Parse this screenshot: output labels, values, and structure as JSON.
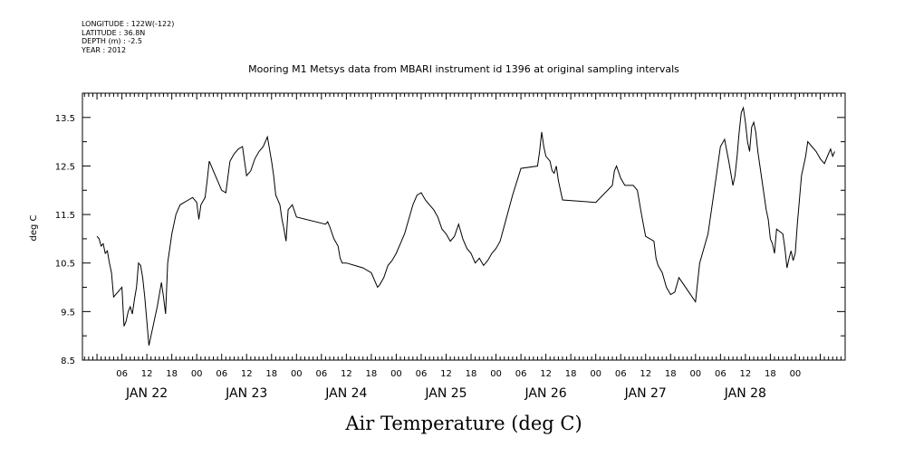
{
  "header": {
    "longitude": "LONGITUDE : 122W(-122)",
    "latitude": "LATITUDE : 36.8N",
    "depth": "DEPTH (m) : -2.5",
    "year": "YEAR : 2012"
  },
  "chart_data": {
    "type": "line",
    "title": "Mooring M1 Metsys data from MBARI instrument id 1396 at original sampling intervals",
    "xlabel": "Air Temperature (deg C)",
    "ylabel": "deg C",
    "ylim": [
      8.5,
      14.0
    ],
    "yticks": [
      "8.5",
      "9.5",
      "10.5",
      "11.5",
      "12.5",
      "13.5"
    ],
    "xlim_hours": [
      0,
      168
    ],
    "hour_tick_labels": [
      "06",
      "12",
      "18",
      "00"
    ],
    "day_labels": [
      "JAN 22",
      "JAN 23",
      "JAN 24",
      "JAN 25",
      "JAN 26",
      "JAN 27",
      "JAN 28"
    ],
    "grid": false,
    "series": [
      {
        "points": [
          [
            0.0,
            11.05
          ],
          [
            0.5,
            11.0
          ],
          [
            1.0,
            10.85
          ],
          [
            1.5,
            10.9
          ],
          [
            2.0,
            10.7
          ],
          [
            2.5,
            10.75
          ],
          [
            3.0,
            10.5
          ],
          [
            3.5,
            10.3
          ],
          [
            4.0,
            9.8
          ],
          [
            4.5,
            9.85
          ],
          [
            5.0,
            9.9
          ],
          [
            5.5,
            9.95
          ],
          [
            6.0,
            10.0
          ],
          [
            6.5,
            9.2
          ],
          [
            7.0,
            9.3
          ],
          [
            7.5,
            9.5
          ],
          [
            8.0,
            9.6
          ],
          [
            8.5,
            9.45
          ],
          [
            9.0,
            9.75
          ],
          [
            9.5,
            10.0
          ],
          [
            10.0,
            10.5
          ],
          [
            10.5,
            10.45
          ],
          [
            11.0,
            10.2
          ],
          [
            11.5,
            9.8
          ],
          [
            12.0,
            9.3
          ],
          [
            12.5,
            8.8
          ],
          [
            13.0,
            9.0
          ],
          [
            13.5,
            9.2
          ],
          [
            14.0,
            9.4
          ],
          [
            14.5,
            9.6
          ],
          [
            15.0,
            9.85
          ],
          [
            15.5,
            10.1
          ],
          [
            16.0,
            9.8
          ],
          [
            16.5,
            9.45
          ],
          [
            17.0,
            10.5
          ],
          [
            18.0,
            11.1
          ],
          [
            19.0,
            11.5
          ],
          [
            20.0,
            11.7
          ],
          [
            21.0,
            11.75
          ],
          [
            22.0,
            11.8
          ],
          [
            23.0,
            11.85
          ],
          [
            24.0,
            11.75
          ],
          [
            24.5,
            11.4
          ],
          [
            25.0,
            11.7
          ],
          [
            26.0,
            11.85
          ],
          [
            26.5,
            12.2
          ],
          [
            27.0,
            12.6
          ],
          [
            28.0,
            12.4
          ],
          [
            30.0,
            12.0
          ],
          [
            31.0,
            11.95
          ],
          [
            32.0,
            12.6
          ],
          [
            33.0,
            12.75
          ],
          [
            34.0,
            12.85
          ],
          [
            35.0,
            12.9
          ],
          [
            36.0,
            12.3
          ],
          [
            37.0,
            12.4
          ],
          [
            38.0,
            12.65
          ],
          [
            39.0,
            12.8
          ],
          [
            40.0,
            12.9
          ],
          [
            41.0,
            13.1
          ],
          [
            41.5,
            12.85
          ],
          [
            42.0,
            12.6
          ],
          [
            42.5,
            12.3
          ],
          [
            43.0,
            11.9
          ],
          [
            44.0,
            11.7
          ],
          [
            44.5,
            11.4
          ],
          [
            45.0,
            11.2
          ],
          [
            45.5,
            10.95
          ],
          [
            46.0,
            11.6
          ],
          [
            47.0,
            11.7
          ],
          [
            48.0,
            11.45
          ],
          [
            55.0,
            11.3
          ],
          [
            55.5,
            11.35
          ],
          [
            56.0,
            11.25
          ],
          [
            57.0,
            11.0
          ],
          [
            58.0,
            10.85
          ],
          [
            58.5,
            10.6
          ],
          [
            59.0,
            10.5
          ],
          [
            60.0,
            10.5
          ],
          [
            62.0,
            10.45
          ],
          [
            64.0,
            10.4
          ],
          [
            66.0,
            10.3
          ],
          [
            67.0,
            10.1
          ],
          [
            67.5,
            10.0
          ],
          [
            68.0,
            10.05
          ],
          [
            69.0,
            10.2
          ],
          [
            70.0,
            10.45
          ],
          [
            71.0,
            10.55
          ],
          [
            72.0,
            10.7
          ],
          [
            73.0,
            10.9
          ],
          [
            74.0,
            11.1
          ],
          [
            75.0,
            11.4
          ],
          [
            76.0,
            11.7
          ],
          [
            77.0,
            11.9
          ],
          [
            78.0,
            11.95
          ],
          [
            79.0,
            11.8
          ],
          [
            80.0,
            11.7
          ],
          [
            81.0,
            11.6
          ],
          [
            82.0,
            11.45
          ],
          [
            83.0,
            11.2
          ],
          [
            84.0,
            11.1
          ],
          [
            85.0,
            10.95
          ],
          [
            86.0,
            11.05
          ],
          [
            87.0,
            11.3
          ],
          [
            88.0,
            11.0
          ],
          [
            89.0,
            10.8
          ],
          [
            90.0,
            10.7
          ],
          [
            91.0,
            10.5
          ],
          [
            92.0,
            10.6
          ],
          [
            93.0,
            10.45
          ],
          [
            94.0,
            10.55
          ],
          [
            95.0,
            10.7
          ],
          [
            96.0,
            10.8
          ],
          [
            97.0,
            10.95
          ],
          [
            100.0,
            11.9
          ],
          [
            102.0,
            12.45
          ],
          [
            106.0,
            12.5
          ],
          [
            106.5,
            12.8
          ],
          [
            107.0,
            13.2
          ],
          [
            107.5,
            12.9
          ],
          [
            108.0,
            12.7
          ],
          [
            109.0,
            12.6
          ],
          [
            109.5,
            12.4
          ],
          [
            110.0,
            12.35
          ],
          [
            110.5,
            12.5
          ],
          [
            111.0,
            12.2
          ],
          [
            112.0,
            11.8
          ],
          [
            120.0,
            11.75
          ],
          [
            124.0,
            12.1
          ],
          [
            124.5,
            12.4
          ],
          [
            125.0,
            12.5
          ],
          [
            126.0,
            12.25
          ],
          [
            127.0,
            12.1
          ],
          [
            129.0,
            12.1
          ],
          [
            130.0,
            12.0
          ],
          [
            131.0,
            11.5
          ],
          [
            132.0,
            11.05
          ],
          [
            134.0,
            10.95
          ],
          [
            134.5,
            10.6
          ],
          [
            135.0,
            10.45
          ],
          [
            136.0,
            10.3
          ],
          [
            137.0,
            10.0
          ],
          [
            138.0,
            9.85
          ],
          [
            139.0,
            9.9
          ],
          [
            140.0,
            10.2
          ],
          [
            144.0,
            9.7
          ],
          [
            145.0,
            10.5
          ],
          [
            146.0,
            10.8
          ],
          [
            147.0,
            11.1
          ],
          [
            148.0,
            11.7
          ],
          [
            149.0,
            12.3
          ],
          [
            150.0,
            12.9
          ],
          [
            151.0,
            13.05
          ],
          [
            152.0,
            12.6
          ],
          [
            153.0,
            12.1
          ],
          [
            153.5,
            12.3
          ],
          [
            154.0,
            12.7
          ],
          [
            154.5,
            13.2
          ],
          [
            155.0,
            13.6
          ],
          [
            155.5,
            13.7
          ],
          [
            156.0,
            13.4
          ],
          [
            156.5,
            13.0
          ],
          [
            157.0,
            12.8
          ],
          [
            157.5,
            13.3
          ],
          [
            158.0,
            13.4
          ],
          [
            158.5,
            13.2
          ],
          [
            159.0,
            12.8
          ],
          [
            159.5,
            12.5
          ],
          [
            160.0,
            12.2
          ],
          [
            160.5,
            11.9
          ],
          [
            161.0,
            11.6
          ],
          [
            161.5,
            11.4
          ],
          [
            162.0,
            11.0
          ],
          [
            162.5,
            10.9
          ],
          [
            163.0,
            10.7
          ],
          [
            163.5,
            11.2
          ],
          [
            165.0,
            11.1
          ],
          [
            165.5,
            10.8
          ],
          [
            166.0,
            10.4
          ],
          [
            166.5,
            10.6
          ],
          [
            167.0,
            10.75
          ],
          [
            167.5,
            10.55
          ],
          [
            168.0,
            10.7
          ]
        ]
      }
    ]
  },
  "extra_series_right": {
    "points": [
      [
        168.0,
        10.7
      ],
      [
        168.5,
        11.3
      ],
      [
        169.0,
        11.8
      ],
      [
        169.5,
        12.3
      ],
      [
        170.0,
        12.5
      ],
      [
        170.5,
        12.7
      ],
      [
        171.0,
        13.0
      ],
      [
        172.0,
        12.9
      ],
      [
        173.0,
        12.8
      ],
      [
        174.0,
        12.65
      ],
      [
        175.0,
        12.55
      ],
      [
        176.0,
        12.75
      ],
      [
        176.5,
        12.85
      ],
      [
        177.0,
        12.7
      ],
      [
        177.5,
        12.8
      ]
    ]
  }
}
